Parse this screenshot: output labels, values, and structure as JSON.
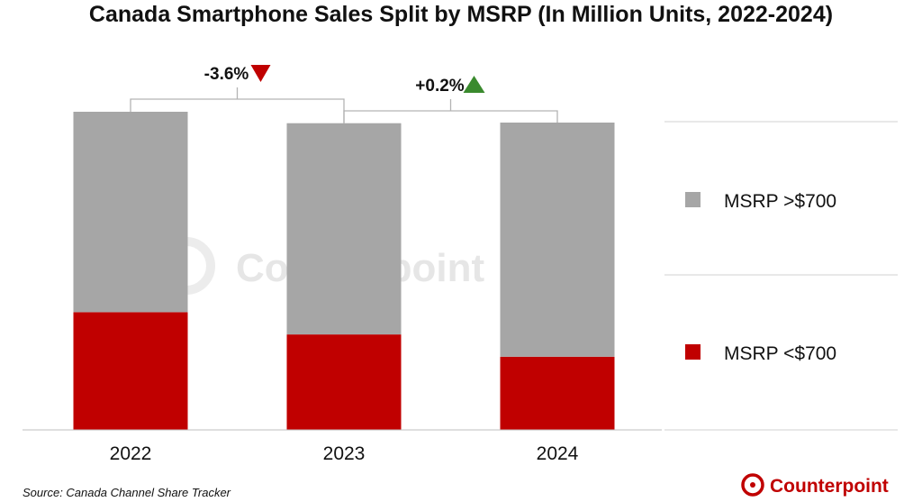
{
  "chart_data": {
    "type": "bar",
    "stacked": true,
    "title": "Canada Smartphone Sales Split by MSRP (In Million Units, 2022-2024)",
    "categories": [
      "2022",
      "2023",
      "2024"
    ],
    "series": [
      {
        "name": "MSRP <$700",
        "color": "#c00000",
        "values": [
          37,
          30,
          23
        ]
      },
      {
        "name": "MSRP >$700",
        "color": "#a6a6a6",
        "values": [
          63,
          66.4,
          73.6
        ]
      }
    ],
    "totals": [
      100,
      96.4,
      96.6
    ],
    "ylim": [
      0,
      100
    ],
    "xlabel": "",
    "ylabel": "",
    "legend_position": "right",
    "annotations": [
      {
        "from": "2022",
        "to": "2023",
        "label": "-3.6%",
        "direction": "down",
        "color": "#c00000"
      },
      {
        "from": "2023",
        "to": "2024",
        "label": "+0.2%",
        "direction": "up",
        "color": "#3a8a2e"
      }
    ]
  },
  "source": "Source: Canada Channel Share Tracker",
  "brand": {
    "name": "Counterpoint",
    "color": "#c00000"
  },
  "watermark": "Counterpoint"
}
